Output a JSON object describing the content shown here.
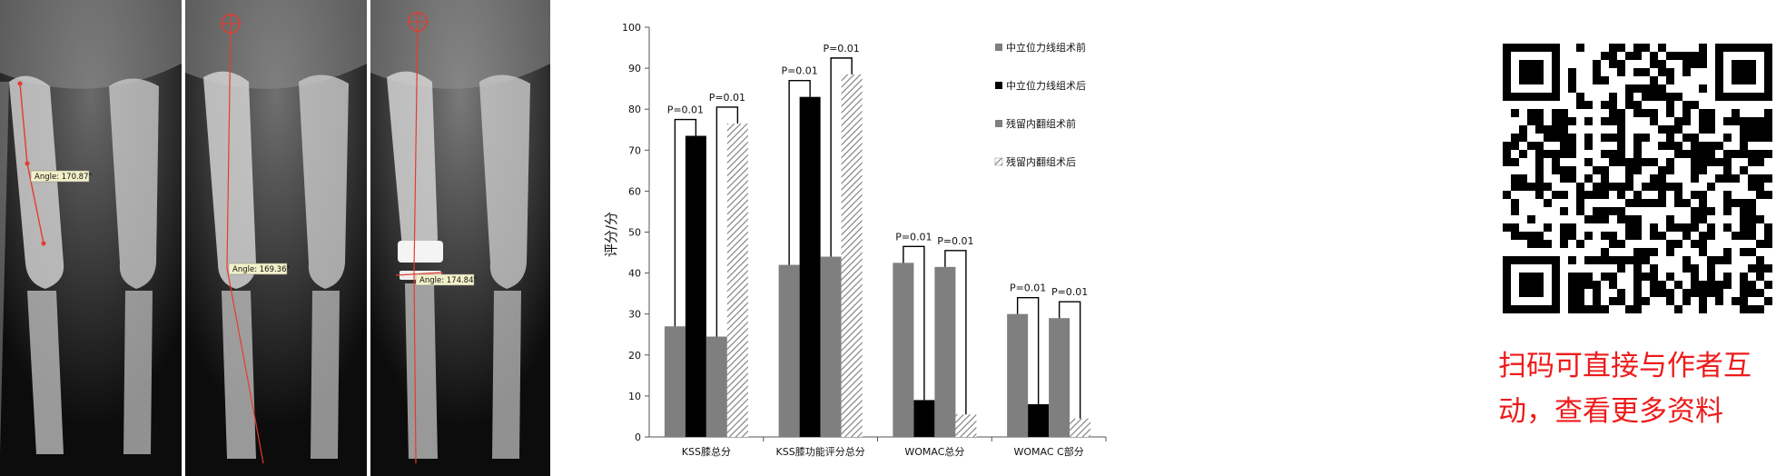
{
  "xray_panels": [
    {
      "angle_label": "Angle: 170.87°"
    },
    {
      "angle_label": "Angle: 169.36°"
    },
    {
      "angle_label": "Angle: 174.84°"
    }
  ],
  "chart_data": {
    "type": "bar",
    "categories": [
      "KSS膝总分",
      "KSS膝功能评分总分",
      "WOMAC总分",
      "WOMAC C部分"
    ],
    "series": [
      {
        "name": "中立位力线组术前",
        "values": [
          27,
          42,
          42.5,
          30
        ],
        "color": "#7f7f7f",
        "pattern": "solid"
      },
      {
        "name": "中立位力线组术后",
        "values": [
          73.5,
          83,
          9,
          8
        ],
        "color": "#000000",
        "pattern": "solid"
      },
      {
        "name": "残留内翻组术前",
        "values": [
          24.5,
          44,
          41.5,
          29
        ],
        "color": "#7f7f7f",
        "pattern": "solid"
      },
      {
        "name": "残留内翻组术后",
        "values": [
          76.5,
          88.5,
          5.5,
          4.5
        ],
        "color": "#8a8a8a",
        "pattern": "hatch"
      }
    ],
    "ylabel": "评分/分",
    "ylim": [
      0,
      100
    ],
    "yticks": [
      0,
      10,
      20,
      30,
      40,
      50,
      60,
      70,
      80,
      90,
      100
    ],
    "legend_position": "right",
    "annotations": [
      {
        "category": 0,
        "pair": "neutral",
        "text": "P=0.01"
      },
      {
        "category": 0,
        "pair": "varus",
        "text": "P=0.01"
      },
      {
        "category": 1,
        "pair": "neutral",
        "text": "P=0.01"
      },
      {
        "category": 1,
        "pair": "varus",
        "text": "P=0.01"
      },
      {
        "category": 2,
        "pair": "neutral",
        "text": "P=0.01"
      },
      {
        "category": 2,
        "pair": "varus",
        "text": "P=0.01"
      },
      {
        "category": 3,
        "pair": "neutral",
        "text": "P=0.01"
      },
      {
        "category": 3,
        "pair": "varus",
        "text": "P=0.01"
      }
    ]
  },
  "qr": {
    "caption_line1": "扫码可直接与作者互",
    "caption_line2": "动，查看更多资料",
    "accent_color": "#ee1b1b"
  }
}
